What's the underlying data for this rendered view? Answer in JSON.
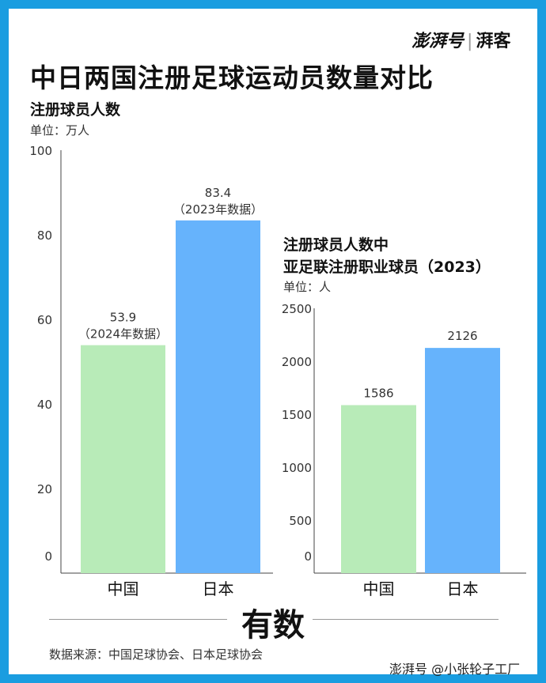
{
  "brand": {
    "name": "澎湃号",
    "sub": "湃客"
  },
  "title": "中日两国注册足球运动员数量对比",
  "logo": "有数",
  "source": "数据来源：中国足球协会、日本足球协会",
  "watermark": "澎湃号 @小张轮子工厂",
  "colors": {
    "china": "#b8ebb8",
    "japan": "#66b3fc"
  },
  "chart_data": [
    {
      "type": "bar",
      "title": "注册球员人数",
      "unit": "单位：万人",
      "categories": [
        "中国",
        "日本"
      ],
      "values": [
        53.9,
        83.4
      ],
      "data_labels": [
        "53.9",
        "83.4"
      ],
      "notes": [
        "（2024年数据）",
        "（2023年数据）"
      ],
      "ylim": [
        0,
        100
      ],
      "yticks": [
        "0",
        "20",
        "40",
        "60",
        "80",
        "100"
      ],
      "ytick_values": [
        0,
        20,
        40,
        60,
        80,
        100
      ]
    },
    {
      "type": "bar",
      "title_lines": [
        "注册球员人数中",
        "亚足联注册职业球员（2023）"
      ],
      "unit": "单位：人",
      "categories": [
        "中国",
        "日本"
      ],
      "values": [
        1586,
        2126
      ],
      "data_labels": [
        "1586",
        "2126"
      ],
      "ylim": [
        0,
        2500
      ],
      "yticks": [
        "0",
        "500",
        "1000",
        "1500",
        "2000",
        "2500"
      ],
      "ytick_values": [
        0,
        500,
        1000,
        1500,
        2000,
        2500
      ]
    }
  ]
}
